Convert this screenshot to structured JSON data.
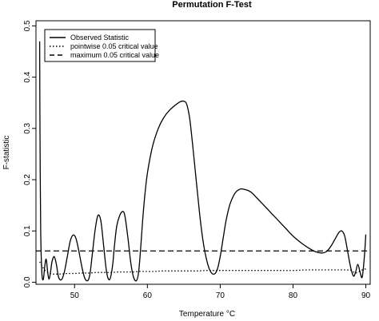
{
  "chart_data": {
    "type": "line",
    "title": "Permutation F-Test",
    "xlabel": "Temperature °C",
    "ylabel": "F-statistic",
    "xlim": [
      44.7,
      90.6
    ],
    "ylim": [
      -0.004,
      0.51
    ],
    "xticks": [
      50,
      60,
      70,
      80,
      90
    ],
    "yticks": [
      0.0,
      0.1,
      0.2,
      0.3,
      0.4,
      0.5
    ],
    "xtick_labels": [
      "50",
      "60",
      "70",
      "80",
      "90"
    ],
    "ytick_labels": [
      "0.0",
      "0.1",
      "0.2",
      "0.3",
      "0.4",
      "0.5"
    ],
    "legend": {
      "position": "top-left",
      "entries": [
        {
          "label": "Observed Statistic",
          "style": "solid"
        },
        {
          "label": "pointwise 0.05 critical value",
          "style": "dotted"
        },
        {
          "label": "maximum 0.05 critical value",
          "style": "dashed"
        }
      ]
    },
    "series": [
      {
        "name": "Observed Statistic",
        "style": "solid",
        "color": "#000000",
        "x": [
          45.2,
          45.25,
          45.35,
          45.5,
          45.7,
          45.9,
          46.1,
          46.3,
          46.5,
          46.7,
          46.9,
          47.2,
          47.5,
          47.8,
          48.2,
          48.6,
          49.0,
          49.4,
          49.8,
          50.2,
          50.6,
          51.0,
          51.4,
          51.8,
          52.1,
          52.4,
          52.8,
          53.2,
          53.6,
          54.0,
          54.4,
          54.8,
          55.2,
          55.5,
          55.8,
          56.2,
          56.6,
          56.9,
          57.3,
          57.7,
          58.1,
          58.5,
          58.8,
          59.1,
          59.4,
          59.8,
          60.2,
          60.8,
          61.5,
          62.2,
          63.0,
          63.8,
          64.5,
          65.0,
          65.4,
          65.8,
          66.2,
          66.7,
          67.2,
          67.7,
          68.2,
          68.7,
          69.2,
          69.6,
          70.0,
          70.4,
          70.8,
          71.3,
          71.8,
          72.3,
          72.8,
          73.3,
          73.8,
          74.3,
          75.0,
          76.0,
          77.0,
          78.0,
          79.0,
          80.0,
          81.0,
          82.0,
          83.0,
          84.0,
          84.6,
          85.2,
          85.8,
          86.3,
          86.7,
          87.1,
          87.5,
          87.9,
          88.3,
          88.6,
          88.9,
          89.2,
          89.5,
          89.8,
          90.0
        ],
        "y": [
          0.47,
          0.3,
          0.1,
          0.02,
          0.005,
          0.03,
          0.045,
          0.02,
          0.006,
          0.02,
          0.04,
          0.05,
          0.035,
          0.01,
          0.005,
          0.02,
          0.05,
          0.08,
          0.092,
          0.085,
          0.06,
          0.03,
          0.008,
          0.003,
          0.015,
          0.05,
          0.1,
          0.13,
          0.12,
          0.07,
          0.02,
          0.005,
          0.03,
          0.075,
          0.11,
          0.13,
          0.138,
          0.13,
          0.09,
          0.04,
          0.01,
          0.003,
          0.02,
          0.07,
          0.13,
          0.19,
          0.23,
          0.27,
          0.3,
          0.32,
          0.335,
          0.345,
          0.352,
          0.353,
          0.347,
          0.32,
          0.27,
          0.2,
          0.13,
          0.075,
          0.04,
          0.02,
          0.016,
          0.025,
          0.05,
          0.085,
          0.12,
          0.15,
          0.168,
          0.178,
          0.182,
          0.181,
          0.179,
          0.175,
          0.165,
          0.15,
          0.135,
          0.12,
          0.105,
          0.09,
          0.078,
          0.068,
          0.06,
          0.057,
          0.06,
          0.07,
          0.085,
          0.097,
          0.1,
          0.09,
          0.06,
          0.03,
          0.012,
          0.02,
          0.035,
          0.02,
          0.01,
          0.05,
          0.093
        ]
      },
      {
        "name": "pointwise 0.05 critical value",
        "style": "dotted",
        "color": "#000000",
        "x": [
          45.2,
          45.6,
          46.0,
          46.5,
          47.0,
          48.0,
          49.0,
          50.0,
          51.0,
          52.0,
          53.0,
          54.0,
          55.0,
          56.0,
          57.0,
          58.0,
          59.0,
          60.0,
          61.0,
          62.0,
          63.0,
          64.0,
          65.0,
          66.0,
          67.0,
          68.0,
          69.0,
          70.0,
          72.0,
          74.0,
          76.0,
          78.0,
          80.0,
          82.0,
          84.0,
          86.0,
          87.0,
          88.0,
          88.5,
          89.0,
          89.5,
          90.0
        ],
        "y": [
          0.04,
          0.03,
          0.022,
          0.018,
          0.016,
          0.016,
          0.017,
          0.017,
          0.018,
          0.018,
          0.019,
          0.019,
          0.019,
          0.02,
          0.02,
          0.02,
          0.021,
          0.021,
          0.021,
          0.022,
          0.022,
          0.022,
          0.022,
          0.022,
          0.022,
          0.023,
          0.023,
          0.023,
          0.023,
          0.023,
          0.023,
          0.023,
          0.023,
          0.024,
          0.024,
          0.024,
          0.024,
          0.023,
          0.018,
          0.02,
          0.024,
          0.026
        ]
      },
      {
        "name": "maximum 0.05 critical value",
        "style": "dashed",
        "color": "#000000",
        "x": [
          44.7,
          90.6
        ],
        "y": [
          0.061,
          0.061
        ]
      }
    ]
  }
}
